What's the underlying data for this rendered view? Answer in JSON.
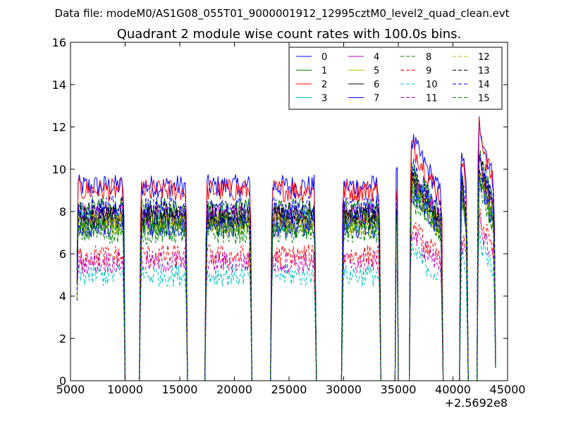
{
  "chart_data": {
    "type": "line",
    "suptitle": "Data file: modeM0/AS1G08_055T01_9000001912_12995cztM0_level2_quad_clean.evt",
    "title": "Quadrant 2 module wise count rates with 100.0s bins.",
    "xlabel": "",
    "ylabel": "",
    "xlim": [
      5000,
      45000
    ],
    "ylim": [
      0,
      16
    ],
    "x_ticks": [
      5000,
      10000,
      15000,
      20000,
      25000,
      30000,
      35000,
      40000,
      45000
    ],
    "x_tick_labels": [
      "5000",
      "10000",
      "15000",
      "20000",
      "25000",
      "30000",
      "35000",
      "40000",
      "45000"
    ],
    "y_ticks": [
      0,
      2,
      4,
      6,
      8,
      10,
      12,
      14,
      16
    ],
    "y_tick_labels": [
      "0",
      "2",
      "4",
      "6",
      "8",
      "10",
      "12",
      "14",
      "16"
    ],
    "x_offset_text": "+2.5692e8",
    "bin_size_s": 100,
    "legend_position": "top-right",
    "grid": false,
    "segments": [
      [
        5600,
        9900
      ],
      [
        11400,
        15600
      ],
      [
        17400,
        21500
      ],
      [
        23400,
        27400
      ],
      [
        29900,
        33300
      ],
      [
        34800,
        34900
      ],
      [
        36100,
        39000
      ],
      [
        40700,
        41300
      ],
      [
        42300,
        43800
      ]
    ],
    "series": [
      {
        "name": "0",
        "mean_rate": 9.2,
        "color": "#0000ff",
        "dash": "solid"
      },
      {
        "name": "1",
        "mean_rate": 8.1,
        "color": "#008000",
        "dash": "solid"
      },
      {
        "name": "2",
        "mean_rate": 9.0,
        "color": "#ff0000",
        "dash": "solid"
      },
      {
        "name": "3",
        "mean_rate": 7.6,
        "color": "#00bfbf",
        "dash": "solid"
      },
      {
        "name": "4",
        "mean_rate": 7.8,
        "color": "#bf00bf",
        "dash": "solid"
      },
      {
        "name": "5",
        "mean_rate": 7.4,
        "color": "#bfbf00",
        "dash": "solid"
      },
      {
        "name": "6",
        "mean_rate": 7.7,
        "color": "#000000",
        "dash": "solid"
      },
      {
        "name": "7",
        "mean_rate": 7.3,
        "color": "#0000ff",
        "dash": "solid"
      },
      {
        "name": "8",
        "mean_rate": 7.0,
        "color": "#008000",
        "dash": "dashed"
      },
      {
        "name": "9",
        "mean_rate": 5.9,
        "color": "#ff0000",
        "dash": "dashed"
      },
      {
        "name": "10",
        "mean_rate": 5.0,
        "color": "#00bfbf",
        "dash": "dashed"
      },
      {
        "name": "11",
        "mean_rate": 5.6,
        "color": "#bf00bf",
        "dash": "dashed"
      },
      {
        "name": "12",
        "mean_rate": 7.5,
        "color": "#bfbf00",
        "dash": "dashed"
      },
      {
        "name": "13",
        "mean_rate": 7.9,
        "color": "#000000",
        "dash": "dashed"
      },
      {
        "name": "14",
        "mean_rate": 8.2,
        "color": "#0000ff",
        "dash": "dashed"
      },
      {
        "name": "15",
        "mean_rate": 7.3,
        "color": "#008000",
        "dash": "dashed"
      }
    ]
  }
}
